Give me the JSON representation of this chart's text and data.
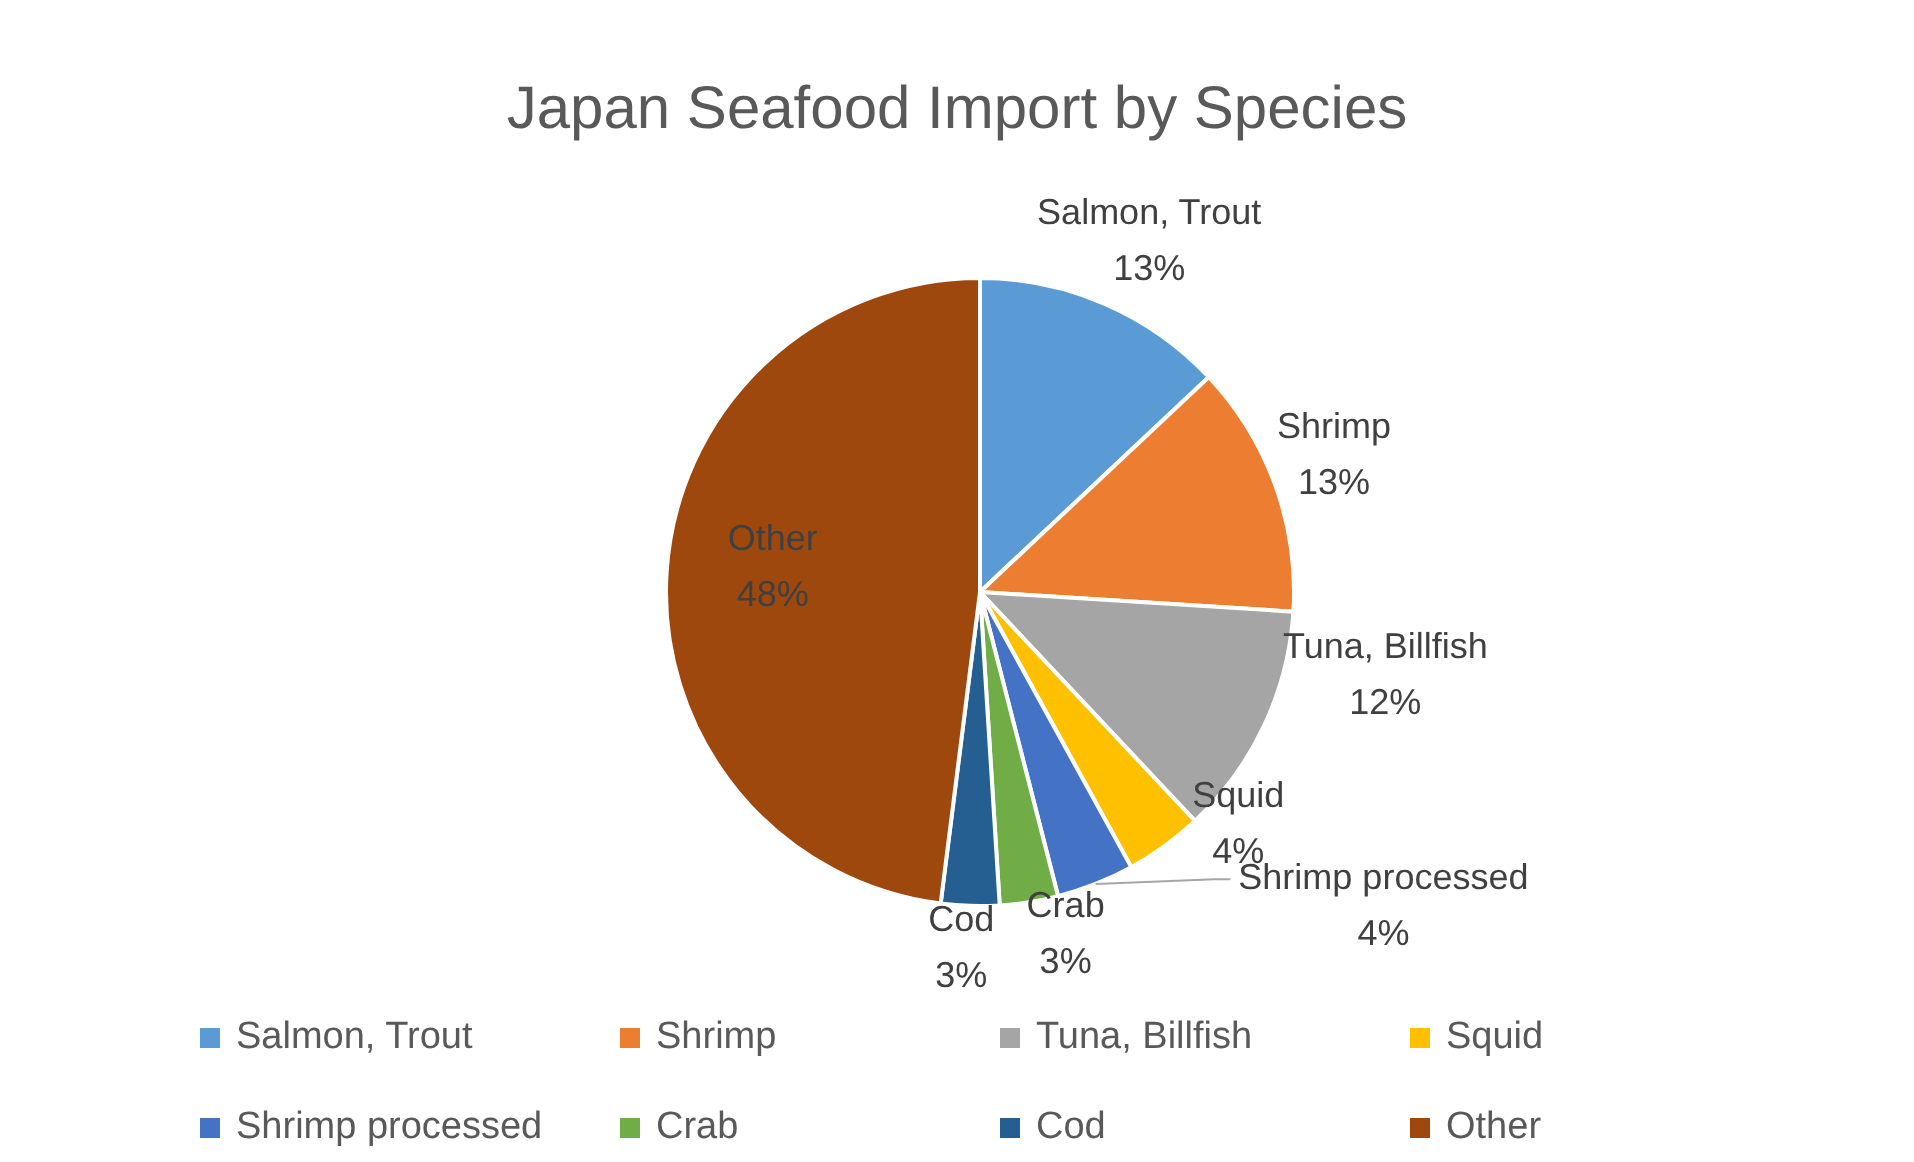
{
  "chart_data": {
    "type": "pie",
    "title": "Japan Seafood Import by Species",
    "categories": [
      "Salmon, Trout",
      "Shrimp",
      "Tuna, Billfish",
      "Squid",
      "Shrimp processed",
      "Crab",
      "Cod",
      "Other"
    ],
    "values": [
      13,
      13,
      12,
      4,
      4,
      3,
      3,
      48
    ],
    "colors": [
      "#5b9bd5",
      "#ed7d31",
      "#a5a5a5",
      "#ffc000",
      "#4472c4",
      "#70ad47",
      "#255e91",
      "#9e480e"
    ],
    "value_labels": [
      "13%",
      "13%",
      "12%",
      "4%",
      "4%",
      "3%",
      "3%",
      "48%"
    ],
    "legend": "bottom"
  }
}
